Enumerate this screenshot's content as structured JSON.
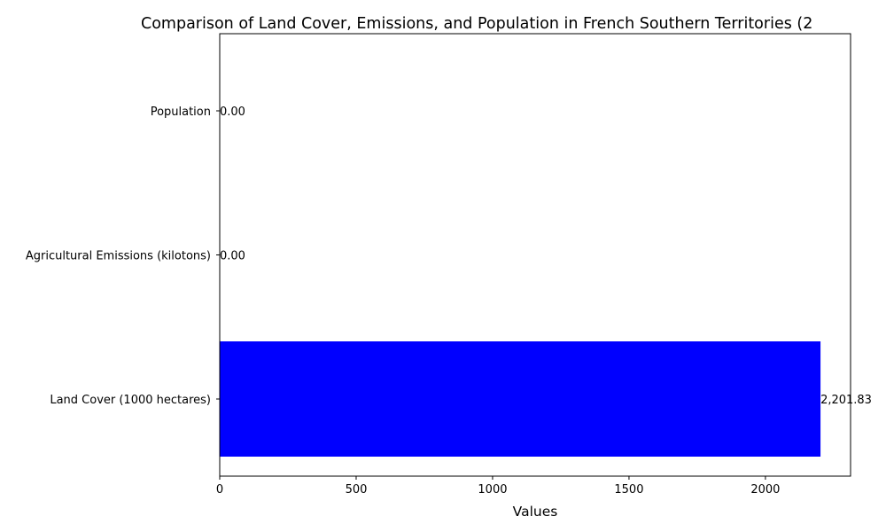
{
  "chart_data": {
    "type": "bar",
    "orientation": "horizontal",
    "title": "Comparison of Land Cover, Emissions, and Population in French Southern Territories (2",
    "xlabel": "Values",
    "ylabel": "",
    "categories": [
      "Land Cover (1000 hectares)",
      "Agricultural Emissions (kilotons)",
      "Population"
    ],
    "values": [
      2201.83,
      0,
      0
    ],
    "value_labels": [
      "2,201.83",
      "0.00",
      "0.00"
    ],
    "x_ticks": [
      "0",
      "500",
      "1000",
      "1500",
      "2000"
    ],
    "xlim": [
      0,
      2312
    ],
    "bar_color": "#0000ff",
    "grid": false,
    "legend": "none"
  }
}
